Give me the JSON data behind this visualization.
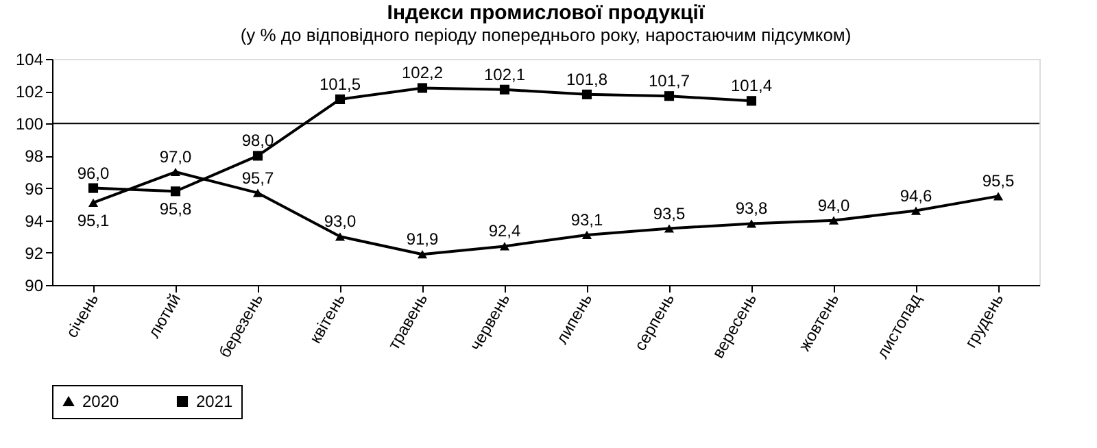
{
  "chart_data": {
    "type": "line",
    "title": "Індекси промислової продукції",
    "subtitle": "(у % до відповідного періоду попереднього року, наростаючим підсумком)",
    "categories": [
      "січень",
      "лютий",
      "березень",
      "квітень",
      "травень",
      "червень",
      "липень",
      "серпень",
      "вересень",
      "жовтень",
      "листопад",
      "грудень"
    ],
    "series": [
      {
        "name": "2020",
        "color": "#000000",
        "marker": "triangle",
        "values": [
          95.1,
          97.0,
          95.7,
          93.0,
          91.9,
          92.4,
          93.1,
          93.5,
          93.8,
          94.0,
          94.6,
          95.5
        ],
        "value_labels": [
          "95,1",
          "97,0",
          "95,7",
          "93,0",
          "91,9",
          "92,4",
          "93,1",
          "93,5",
          "93,8",
          "94,0",
          "94,6",
          "95,5"
        ]
      },
      {
        "name": "2021",
        "color": "#000000",
        "marker": "square",
        "values": [
          96.0,
          95.8,
          98.0,
          101.5,
          102.2,
          102.1,
          101.8,
          101.7,
          101.4,
          null,
          null,
          null
        ],
        "value_labels": [
          "96,0",
          "95,8",
          "98,0",
          "101,5",
          "102,2",
          "102,1",
          "101,8",
          "101,7",
          "101,4",
          null,
          null,
          null
        ]
      }
    ],
    "ylim": [
      90,
      104
    ],
    "yticks": [
      90,
      92,
      94,
      96,
      98,
      100,
      102,
      104
    ],
    "ref_lines": [
      {
        "axis": "y",
        "value": 100,
        "label": null,
        "color": "#000000"
      }
    ],
    "grid": false,
    "legend": "bottom",
    "line_style": "solid"
  }
}
